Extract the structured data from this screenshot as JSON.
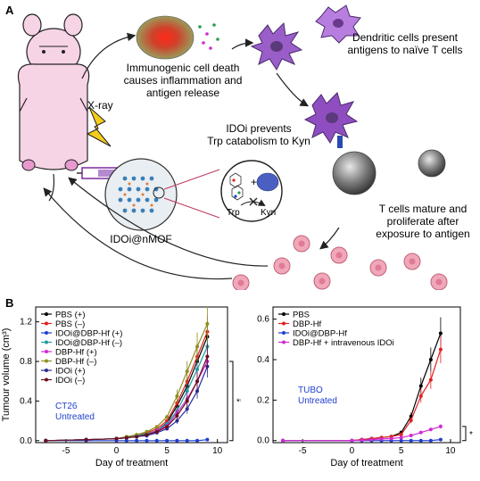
{
  "panel_a": {
    "letter": "A",
    "xray_label": "X-ray",
    "icd_line1": "Immunogenic cell death",
    "icd_line2": "causes inflammation and",
    "icd_line3": "antigen release",
    "dc_line1": "Dendritic cells present",
    "dc_line2": "antigens to naïve T cells",
    "ido_line1": "IDOi prevents",
    "ido_line2": "Trp catabolism to Kyn",
    "trp_label": "Trp",
    "kyn_label": "Kyn",
    "plus_label": "+",
    "nmof_label": "IDOi@nMOF",
    "tcell_line1": "T cells mature and",
    "tcell_line2": "proliferate after",
    "tcell_line3": "exposure to antigen"
  },
  "panel_b": {
    "letter": "B"
  },
  "chart_data": [
    {
      "type": "line",
      "ylabel": "Tumour volume (cm³)",
      "xlabel": "Day of treatment",
      "xlim": [
        -8,
        11
      ],
      "ylim": [
        -0.02,
        1.35
      ],
      "x_ticks": [
        "-5",
        "0",
        "5",
        "10"
      ],
      "y_ticks": [
        "0.0",
        "0.4",
        "0.8",
        "1.2"
      ],
      "annotation": "CT26\nUntreated",
      "annotation_line1": "CT26",
      "annotation_line2": "Untreated",
      "significance": "**",
      "legend_position": "top-left",
      "x": [
        -7,
        -3,
        0,
        1,
        2,
        3,
        4,
        5,
        6,
        7,
        8,
        9
      ],
      "series": [
        {
          "name": "PBS (+)",
          "color": "#000000",
          "values": [
            0,
            0.01,
            0.02,
            0.03,
            0.04,
            0.07,
            0.1,
            0.18,
            0.35,
            0.55,
            0.8,
            1.05
          ]
        },
        {
          "name": "PBS (–)",
          "color": "#e02020",
          "values": [
            0,
            0.01,
            0.02,
            0.03,
            0.05,
            0.08,
            0.12,
            0.2,
            0.38,
            0.6,
            0.85,
            1.1
          ]
        },
        {
          "name": "IDOi@DBP-Hf (+)",
          "color": "#1f3fcf",
          "values": [
            0,
            0,
            0,
            0,
            0,
            0,
            0,
            0,
            0,
            0,
            0,
            0.01
          ]
        },
        {
          "name": "IDOi@DBP-Hf (–)",
          "color": "#1f9aa0",
          "values": [
            0,
            0.01,
            0.02,
            0.03,
            0.05,
            0.07,
            0.1,
            0.17,
            0.3,
            0.5,
            0.72,
            0.95
          ]
        },
        {
          "name": "DBP-Hf (+)",
          "color": "#d12ad1",
          "values": [
            0,
            0.01,
            0.02,
            0.03,
            0.04,
            0.06,
            0.1,
            0.15,
            0.28,
            0.42,
            0.6,
            0.8
          ]
        },
        {
          "name": "DBP-Hf (–)",
          "color": "#8f8f1f",
          "values": [
            0,
            0.01,
            0.02,
            0.04,
            0.06,
            0.09,
            0.14,
            0.24,
            0.45,
            0.7,
            0.95,
            1.18
          ]
        },
        {
          "name": "IDOi (+)",
          "color": "#2a2a9a",
          "values": [
            0,
            0.01,
            0.02,
            0.03,
            0.04,
            0.05,
            0.08,
            0.12,
            0.2,
            0.32,
            0.5,
            0.75
          ]
        },
        {
          "name": "IDOi (–)",
          "color": "#6a1020",
          "values": [
            0,
            0.01,
            0.02,
            0.03,
            0.04,
            0.06,
            0.09,
            0.14,
            0.25,
            0.4,
            0.6,
            0.85
          ]
        }
      ]
    },
    {
      "type": "line",
      "xlabel": "Day of treatment",
      "xlim": [
        -8,
        11
      ],
      "ylim": [
        -0.01,
        0.66
      ],
      "x_ticks": [
        "-5",
        "0",
        "5",
        "10"
      ],
      "y_ticks": [
        "0.0",
        "0.2",
        "0.4",
        "0.6"
      ],
      "annotation_line1": "TUBO",
      "annotation_line2": "Untreated",
      "significance": "*",
      "legend_position": "top-left",
      "x": [
        -7,
        0,
        1,
        2,
        3,
        4,
        5,
        6,
        7,
        8,
        9
      ],
      "series": [
        {
          "name": "PBS",
          "color": "#000000",
          "values": [
            0,
            0,
            0.005,
            0.01,
            0.015,
            0.02,
            0.04,
            0.12,
            0.27,
            0.4,
            0.53
          ]
        },
        {
          "name": "DBP-Hf",
          "color": "#e02020",
          "values": [
            0,
            0,
            0.005,
            0.01,
            0.015,
            0.02,
            0.03,
            0.1,
            0.22,
            0.3,
            0.45
          ]
        },
        {
          "name": "IDOi@DBP-Hf",
          "color": "#1f3fcf",
          "values": [
            0,
            0,
            0,
            0,
            0,
            0,
            0,
            0,
            0,
            0,
            0.005
          ]
        },
        {
          "name": "DBP-Hf + intravenous IDOi",
          "color": "#d12ad1",
          "values": [
            0,
            0,
            0.002,
            0.005,
            0.008,
            0.01,
            0.015,
            0.025,
            0.04,
            0.055,
            0.07
          ]
        }
      ]
    }
  ]
}
